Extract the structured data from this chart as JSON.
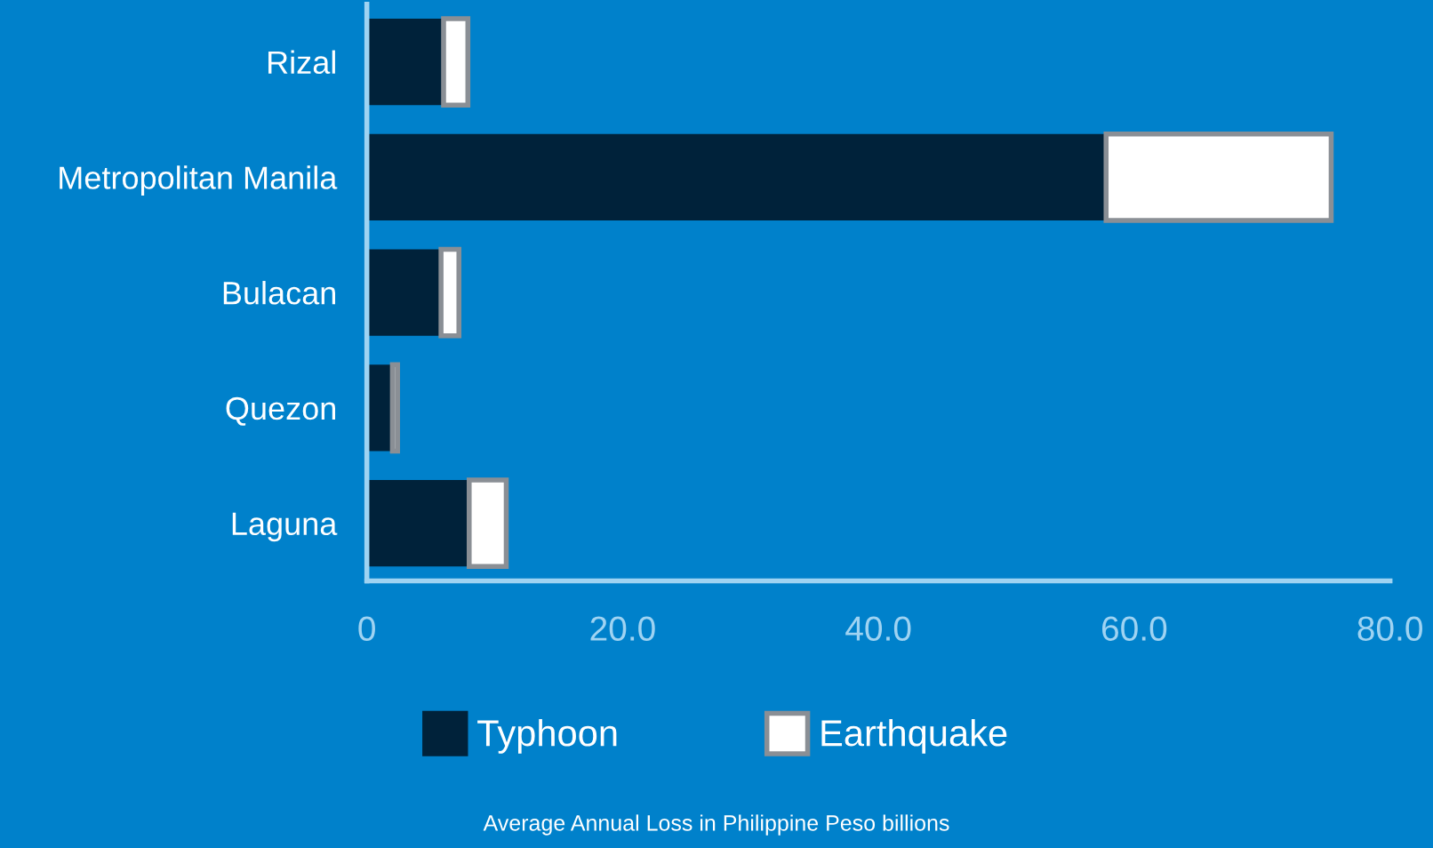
{
  "chart_data": {
    "type": "bar",
    "orientation": "horizontal",
    "stacked": true,
    "categories": [
      "Rizal",
      "Metropolitan Manila",
      "Bulacan",
      "Quezon",
      "Laguna"
    ],
    "series": [
      {
        "name": "Typhoon",
        "color": "#00223a",
        "values": [
          6.0,
          57.8,
          5.8,
          2.0,
          8.0
        ]
      },
      {
        "name": "Earthquake",
        "color": "#ffffff",
        "values": [
          1.9,
          17.6,
          1.4,
          0.4,
          2.9
        ]
      }
    ],
    "xlim": [
      0,
      80
    ],
    "xticks": [
      {
        "value": 0,
        "label": "0"
      },
      {
        "value": 20,
        "label": "20.0"
      },
      {
        "value": 40,
        "label": "40.0"
      },
      {
        "value": 60,
        "label": "60.0"
      },
      {
        "value": 80,
        "label": "80.0"
      }
    ],
    "annotations": [
      "Average Annual Loss in Philippine Peso billions"
    ],
    "legend": "bottom",
    "grid": false
  }
}
